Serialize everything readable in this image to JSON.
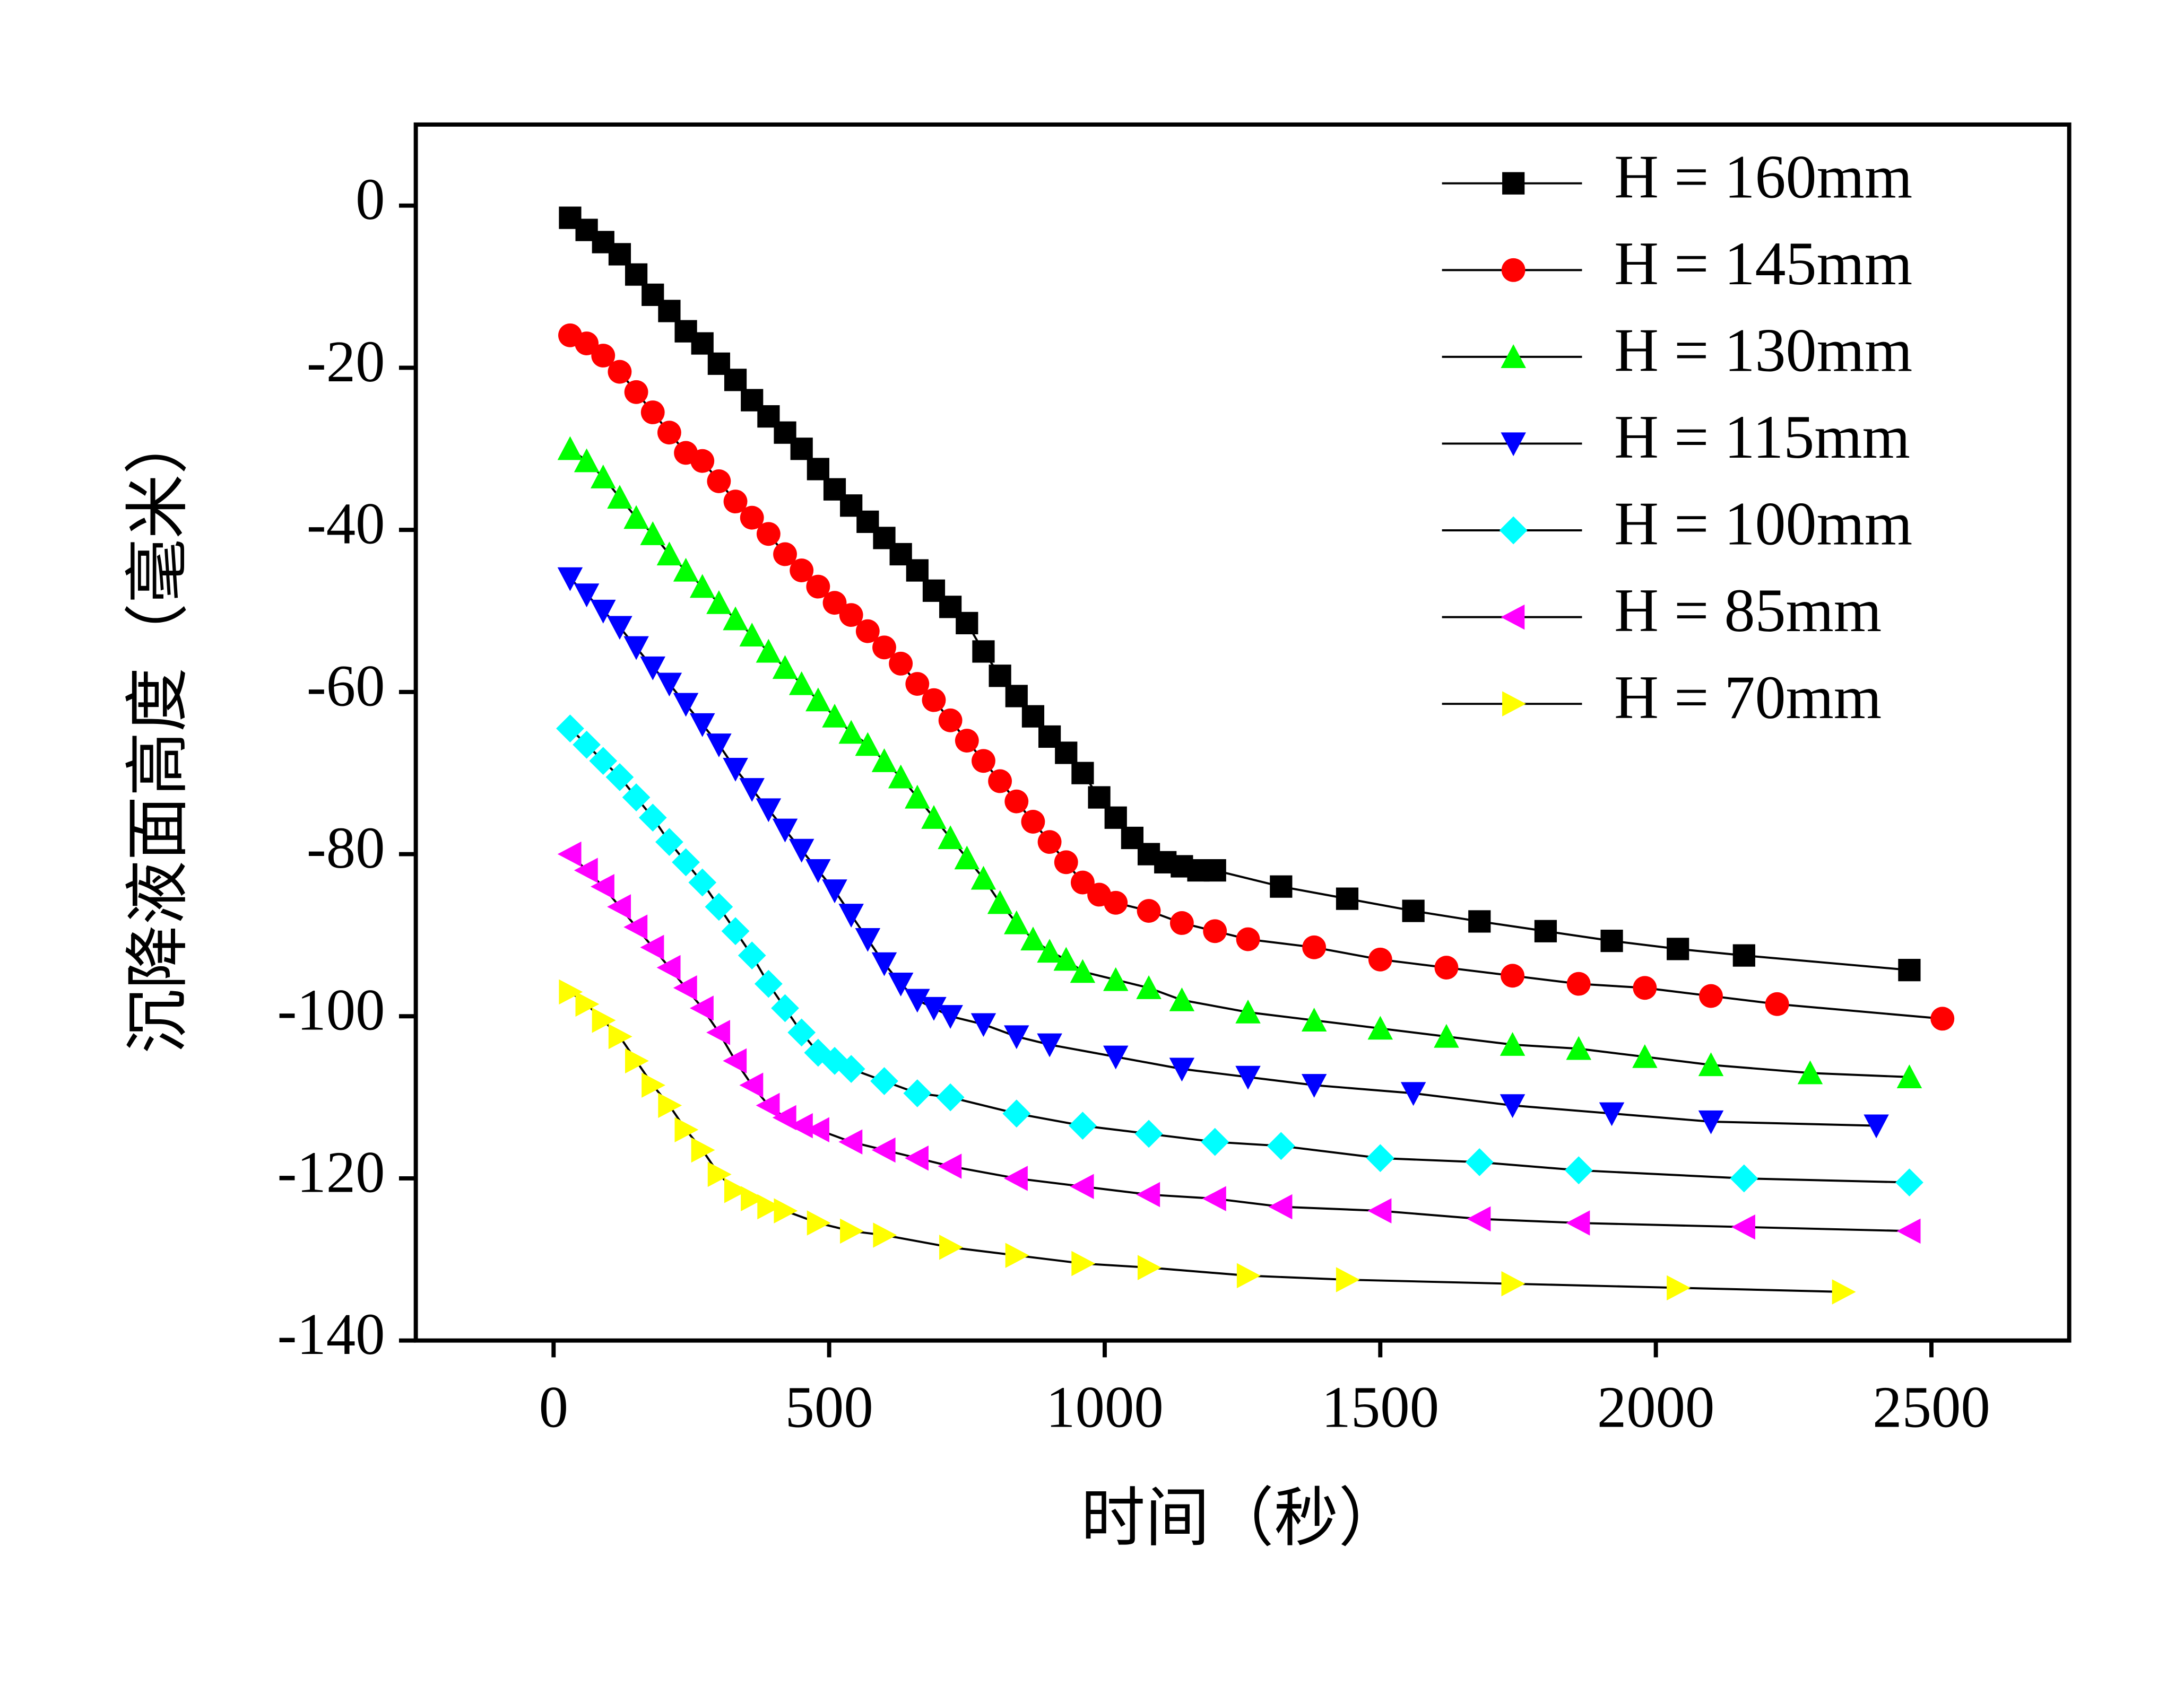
{
  "chart_data": {
    "type": "line",
    "x_label": "时间（秒）",
    "y_label": "沉降液面高度（毫米）",
    "xlim": [
      -250,
      2750
    ],
    "ylim": [
      -140,
      10
    ],
    "xticks": [
      0,
      500,
      1000,
      1500,
      2000,
      2500
    ],
    "yticks": [
      0,
      -20,
      -40,
      -60,
      -80,
      -100,
      -120,
      -140
    ],
    "legend": "upper right",
    "series": [
      {
        "name": "H = 160mm",
        "color": "#000000",
        "marker": "square",
        "x": [
          30,
          60,
          90,
          120,
          150,
          180,
          210,
          240,
          270,
          300,
          330,
          360,
          390,
          420,
          450,
          480,
          510,
          540,
          570,
          600,
          630,
          660,
          690,
          720,
          750,
          780,
          810,
          840,
          870,
          900,
          930,
          960,
          990,
          1020,
          1050,
          1080,
          1110,
          1140,
          1170,
          1200,
          1320,
          1440,
          1560,
          1680,
          1800,
          1920,
          2040,
          2160,
          2460
        ],
        "values": [
          -1.5,
          -3,
          -4.5,
          -6,
          -8.5,
          -11,
          -13,
          -15.5,
          -17,
          -19.5,
          -21.5,
          -24,
          -26,
          -28,
          -30,
          -32.5,
          -35,
          -37,
          -39,
          -41,
          -43,
          -45,
          -47.5,
          -49.5,
          -51.5,
          -55,
          -58,
          -60.5,
          -63,
          -65.5,
          -67.5,
          -70,
          -73,
          -75.5,
          -78,
          -80,
          -81,
          -81.5,
          -82,
          -82,
          -84,
          -85.5,
          -87,
          -88.3,
          -89.5,
          -90.7,
          -91.7,
          -92.5,
          -94.3
        ]
      },
      {
        "name": "H = 145mm",
        "color": "#ff0000",
        "marker": "circle",
        "x": [
          30,
          60,
          90,
          120,
          150,
          180,
          210,
          240,
          270,
          300,
          330,
          360,
          390,
          420,
          450,
          480,
          510,
          540,
          570,
          600,
          630,
          660,
          690,
          720,
          750,
          780,
          810,
          840,
          870,
          900,
          930,
          960,
          990,
          1020,
          1080,
          1140,
          1200,
          1260,
          1380,
          1500,
          1620,
          1740,
          1860,
          1980,
          2100,
          2220,
          2520
        ],
        "values": [
          -16,
          -17,
          -18.5,
          -20.5,
          -23,
          -25.5,
          -28,
          -30.5,
          -31.5,
          -34,
          -36.5,
          -38.5,
          -40.5,
          -43,
          -45,
          -47,
          -49,
          -50.5,
          -52.5,
          -54.5,
          -56.5,
          -59,
          -61,
          -63.5,
          -66,
          -68.5,
          -71,
          -73.5,
          -76,
          -78.5,
          -81,
          -83.5,
          -85,
          -86,
          -87,
          -88.5,
          -89.5,
          -90.5,
          -91.5,
          -93,
          -94,
          -95,
          -96,
          -96.5,
          -97.5,
          -98.5,
          -100.3
        ]
      },
      {
        "name": "H = 130mm",
        "color": "#00ff00",
        "marker": "triangle-up",
        "x": [
          30,
          60,
          90,
          120,
          150,
          180,
          210,
          240,
          270,
          300,
          330,
          360,
          390,
          420,
          450,
          480,
          510,
          540,
          570,
          600,
          630,
          660,
          690,
          720,
          750,
          780,
          810,
          840,
          870,
          900,
          930,
          960,
          1020,
          1080,
          1140,
          1260,
          1380,
          1500,
          1620,
          1740,
          1860,
          1980,
          2100,
          2280,
          2460
        ],
        "values": [
          -30,
          -31.5,
          -33.5,
          -36,
          -38.5,
          -40.5,
          -43,
          -45,
          -47,
          -49,
          -51,
          -53,
          -55,
          -57,
          -59,
          -61,
          -63,
          -65,
          -66.5,
          -68.5,
          -70.5,
          -73,
          -75.5,
          -78,
          -80.5,
          -83,
          -86,
          -88.5,
          -90.5,
          -92,
          -93,
          -94.5,
          -95.5,
          -96.5,
          -98,
          -99.5,
          -100.5,
          -101.5,
          -102.5,
          -103.5,
          -104,
          -105,
          -106,
          -107,
          -107.5
        ]
      },
      {
        "name": "H = 115mm",
        "color": "#0000ff",
        "marker": "triangle-down",
        "x": [
          30,
          60,
          90,
          120,
          150,
          180,
          210,
          240,
          270,
          300,
          330,
          360,
          390,
          420,
          450,
          480,
          510,
          540,
          570,
          600,
          630,
          660,
          690,
          720,
          780,
          840,
          900,
          1020,
          1140,
          1260,
          1380,
          1560,
          1740,
          1920,
          2100,
          2400
        ],
        "values": [
          -46,
          -48,
          -50,
          -52,
          -54.5,
          -57,
          -59,
          -61.5,
          -64,
          -66.5,
          -69.5,
          -72,
          -74.5,
          -77,
          -79.5,
          -82,
          -84.5,
          -87.5,
          -90.5,
          -93.5,
          -96,
          -98,
          -99,
          -100,
          -101,
          -102.5,
          -103.5,
          -105,
          -106.5,
          -107.5,
          -108.5,
          -109.5,
          -111,
          -112,
          -113,
          -113.5
        ]
      },
      {
        "name": "H = 100mm",
        "color": "#00ffff",
        "marker": "diamond",
        "x": [
          30,
          60,
          90,
          120,
          150,
          180,
          210,
          240,
          270,
          300,
          330,
          360,
          390,
          420,
          450,
          480,
          510,
          540,
          600,
          660,
          720,
          840,
          960,
          1080,
          1200,
          1320,
          1500,
          1680,
          1860,
          2160,
          2460
        ],
        "values": [
          -64.5,
          -66.5,
          -68.5,
          -70.5,
          -73,
          -75.5,
          -78.5,
          -81,
          -83.5,
          -86.5,
          -89.5,
          -92.5,
          -96,
          -99,
          -102,
          -104.5,
          -105.5,
          -106.5,
          -108,
          -109.5,
          -110,
          -112,
          -113.5,
          -114.5,
          -115.5,
          -116,
          -117.5,
          -118,
          -119,
          -120,
          -120.5
        ]
      },
      {
        "name": "H = 85mm",
        "color": "#ff00ff",
        "marker": "triangle-left",
        "x": [
          30,
          60,
          90,
          120,
          150,
          180,
          210,
          240,
          270,
          300,
          330,
          360,
          390,
          420,
          450,
          480,
          540,
          600,
          660,
          720,
          840,
          960,
          1080,
          1200,
          1320,
          1500,
          1680,
          1860,
          2160,
          2460
        ],
        "values": [
          -80,
          -82,
          -84,
          -86.5,
          -89,
          -91.5,
          -94,
          -96.5,
          -99,
          -102,
          -105.5,
          -108.5,
          -111,
          -112.5,
          -113.5,
          -114,
          -115.5,
          -116.5,
          -117.5,
          -118.5,
          -120,
          -121,
          -122,
          -122.5,
          -123.5,
          -124,
          -125,
          -125.5,
          -126,
          -126.5
        ]
      },
      {
        "name": "H = 70mm",
        "color": "#ffff00",
        "marker": "triangle-right",
        "x": [
          30,
          60,
          90,
          120,
          150,
          180,
          210,
          240,
          270,
          300,
          330,
          360,
          390,
          420,
          480,
          540,
          600,
          720,
          840,
          960,
          1080,
          1260,
          1440,
          1740,
          2040,
          2340
        ],
        "values": [
          -97,
          -98.5,
          -100.5,
          -102.5,
          -105.5,
          -108.5,
          -111,
          -114,
          -116.5,
          -119.5,
          -121.5,
          -122.5,
          -123.5,
          -124,
          -125.5,
          -126.5,
          -127,
          -128.5,
          -129.5,
          -130.5,
          -131,
          -132,
          -132.5,
          -133,
          -133.5,
          -134
        ]
      }
    ]
  }
}
